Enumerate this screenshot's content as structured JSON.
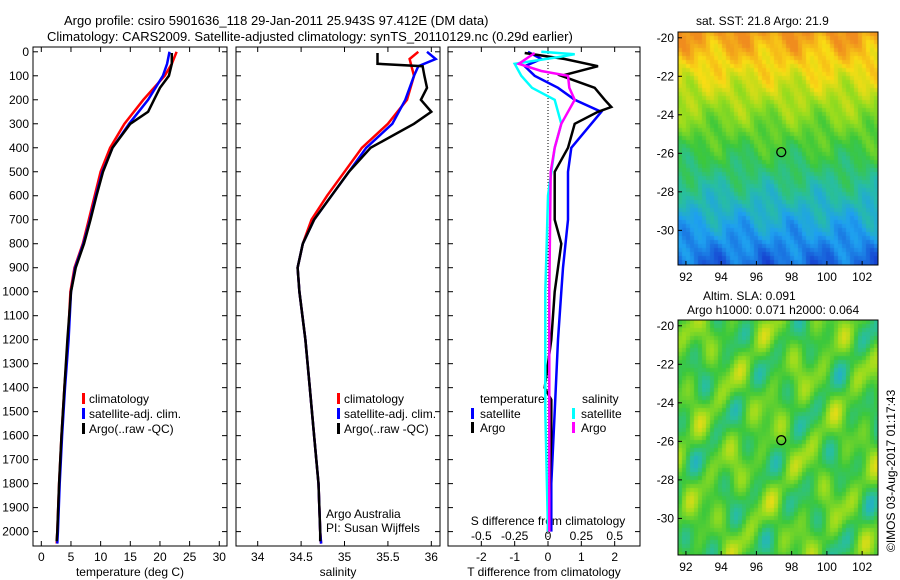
{
  "title_line1": "Argo profile: csiro 5901636_118 29-Jan-2011 25.943S 97.412E (DM data)",
  "title_line2": "Climatology: CARS2009. Satellite-adjusted climatology: synTS_20110129.nc (0.29d earlier)",
  "colors": {
    "climatology": "#ff0000",
    "satellite": "#0000ff",
    "argo": "#000000",
    "sal_satellite": "#00ffff",
    "sal_argo": "#ff00ff"
  },
  "chart_data": [
    {
      "type": "line",
      "xlabel": "temperature (deg C)",
      "ylabel": "",
      "xticks": [
        0,
        5,
        10,
        15,
        20,
        25,
        30
      ],
      "xlim": [
        -1.4,
        31.3
      ],
      "yticks": [
        0,
        100,
        200,
        300,
        400,
        500,
        600,
        700,
        800,
        900,
        1000,
        1100,
        1200,
        1300,
        1400,
        1500,
        1600,
        1700,
        1800,
        1900,
        2000
      ],
      "ylim": [
        2060,
        -20
      ],
      "legend": [
        "climatology",
        "satellite-adj. clim.",
        "Argo(..raw -QC)"
      ],
      "series": [
        {
          "name": "climatology",
          "color": "#ff0000",
          "depth": [
            0,
            50,
            100,
            200,
            300,
            400,
            500,
            600,
            700,
            800,
            900,
            1000,
            1200,
            1400,
            1600,
            1800,
            2000,
            2050
          ],
          "values": [
            22.8,
            22,
            20.8,
            17.2,
            14,
            11.6,
            10,
            9,
            8,
            7,
            5.6,
            4.9,
            4.5,
            3.9,
            3.4,
            3,
            2.7,
            2.6
          ]
        },
        {
          "name": "satellite-adj. clim.",
          "color": "#0000ff",
          "depth": [
            0,
            50,
            100,
            200,
            300,
            400,
            500,
            600,
            700,
            800,
            900,
            1000,
            1200,
            1400,
            1600,
            1800,
            2000,
            2050
          ],
          "values": [
            21.6,
            21.2,
            20.5,
            18,
            14.8,
            12,
            10.3,
            9.2,
            8.2,
            7.1,
            5.7,
            5,
            4.6,
            4,
            3.5,
            3.1,
            2.8,
            2.7
          ]
        },
        {
          "name": "Argo(..raw -QC)",
          "color": "#000000",
          "depth": [
            5,
            50,
            100,
            150,
            200,
            250,
            300,
            400,
            500,
            600,
            700,
            800,
            900,
            1000,
            1200,
            1400,
            1600,
            1800,
            2000,
            2040
          ],
          "values": [
            22,
            22,
            21.5,
            20,
            19,
            18,
            15,
            12,
            10.4,
            9.3,
            8.3,
            7.2,
            5.8,
            5,
            4.4,
            3.9,
            3.4,
            3,
            2.7,
            2.6
          ]
        }
      ]
    },
    {
      "type": "line",
      "xlabel": "salinity",
      "xticks": [
        34,
        34.5,
        35,
        35.5,
        36
      ],
      "xlim": [
        33.75,
        36.1
      ],
      "ylim": [
        2060,
        -20
      ],
      "legend": [
        "climatology",
        "satellite-adj. clim.",
        "Argo(..raw -QC)"
      ],
      "annotation": [
        "Argo Australia",
        "PI: Susan Wijffels"
      ],
      "series": [
        {
          "name": "climatology",
          "color": "#ff0000",
          "depth": [
            0,
            30,
            100,
            200,
            300,
            400,
            500,
            600,
            700,
            800,
            900,
            1000,
            1200,
            1400,
            1600,
            1800,
            2000,
            2050
          ],
          "values": [
            35.85,
            35.75,
            35.8,
            35.72,
            35.5,
            35.2,
            35,
            34.8,
            34.62,
            34.52,
            34.46,
            34.48,
            34.55,
            34.6,
            34.65,
            34.7,
            34.72,
            34.73
          ]
        },
        {
          "name": "satellite-adj. clim.",
          "color": "#0000ff",
          "depth": [
            0,
            30,
            60,
            100,
            200,
            300,
            400,
            500,
            600,
            700,
            800,
            900,
            1000,
            1200,
            1400,
            1600,
            1800,
            2000,
            2050
          ],
          "values": [
            35.95,
            36.05,
            35.85,
            35.8,
            35.7,
            35.55,
            35.25,
            35.05,
            34.85,
            34.65,
            34.52,
            34.46,
            34.48,
            34.55,
            34.6,
            34.65,
            34.7,
            34.72,
            34.73
          ]
        },
        {
          "name": "Argo(..raw -QC)",
          "color": "#000000",
          "depth": [
            5,
            50,
            60,
            100,
            150,
            200,
            250,
            300,
            400,
            500,
            600,
            700,
            800,
            900,
            1000,
            1200,
            1400,
            1600,
            1800,
            2000,
            2040
          ],
          "values": [
            35.38,
            35.38,
            35.9,
            35.92,
            35.95,
            35.88,
            36.0,
            35.8,
            35.3,
            35.05,
            34.85,
            34.65,
            34.52,
            34.46,
            34.48,
            34.55,
            34.6,
            34.65,
            34.7,
            34.72,
            34.72
          ]
        }
      ]
    },
    {
      "type": "line",
      "xlabel": "T difference from climatology",
      "xticks": [
        -2,
        -1,
        0,
        1,
        2
      ],
      "xlim": [
        -3,
        2.76
      ],
      "x2label": "S difference from climatology",
      "x2ticks": [
        "-0.5",
        "-0.25",
        "0",
        "0.25",
        "0.5"
      ],
      "ylim": [
        2060,
        -20
      ],
      "legend": {
        "temperature": [
          "satellite",
          "Argo"
        ],
        "salinity": [
          "satellite",
          "Argo"
        ],
        "temperature_title": "temperature",
        "salinity_title": "salinity"
      },
      "series": [
        {
          "name": "T satellite",
          "color": "#0000ff",
          "units": "T",
          "depth": [
            0,
            30,
            60,
            100,
            150,
            200,
            250,
            300,
            400,
            500,
            700,
            900,
            1000,
            1200,
            1500,
            1800,
            2000
          ],
          "values": [
            -0.6,
            -0.2,
            -0.7,
            -0.4,
            0.3,
            0.8,
            1.6,
            1.3,
            0.7,
            0.6,
            0.6,
            0.45,
            0.4,
            0.3,
            0.2,
            0.1,
            0.1
          ]
        },
        {
          "name": "T Argo",
          "color": "#000000",
          "units": "T",
          "depth": [
            5,
            30,
            60,
            100,
            150,
            200,
            230,
            250,
            300,
            400,
            500,
            700,
            800,
            900,
            1000,
            1200,
            1400,
            1450,
            1600,
            2000
          ],
          "values": [
            -0.7,
            0.5,
            1.5,
            0.4,
            1.4,
            1.7,
            1.9,
            1.5,
            0.8,
            0.6,
            0.2,
            0.2,
            0.4,
            0.3,
            0.2,
            0.1,
            -0.1,
            0.1,
            0.1,
            0.0
          ]
        },
        {
          "name": "S satellite",
          "color": "#00ffff",
          "units": "S",
          "depth": [
            0,
            10,
            20,
            50,
            100,
            150,
            200,
            300,
            400,
            600,
            800,
            1000,
            1500,
            2000
          ],
          "values": [
            -0.05,
            0.2,
            0.1,
            -0.25,
            -0.2,
            -0.12,
            0.05,
            0.1,
            0.05,
            0.0,
            -0.01,
            -0.02,
            -0.02,
            0.0
          ]
        },
        {
          "name": "S Argo",
          "color": "#ff00ff",
          "units": "S",
          "depth": [
            5,
            50,
            80,
            100,
            150,
            200,
            300,
            400,
            500,
            1000,
            2000
          ],
          "values": [
            -0.1,
            -0.22,
            -0.05,
            0.15,
            0.16,
            0.2,
            0.1,
            0.05,
            0.02,
            0.01,
            0.01
          ]
        }
      ]
    }
  ],
  "maps": [
    {
      "title": "sat. SST: 21.8  Argo: 21.9",
      "xticks": [
        92,
        94,
        96,
        98,
        100,
        102
      ],
      "yticks": [
        -20,
        -22,
        -24,
        -26,
        -28,
        -30
      ],
      "marker": {
        "lon": 97.41,
        "lat": -25.94
      }
    },
    {
      "title_line1": "Altim. SLA: 0.091",
      "title_line2": "Argo h1000: 0.071 h2000: 0.064",
      "xticks": [
        92,
        94,
        96,
        98,
        100,
        102
      ],
      "yticks": [
        -20,
        -22,
        -24,
        -26,
        -28,
        -30
      ],
      "marker": {
        "lon": 97.41,
        "lat": -25.94
      }
    }
  ],
  "stamp": "©IMOS 03-Aug-2017 01:17:43"
}
